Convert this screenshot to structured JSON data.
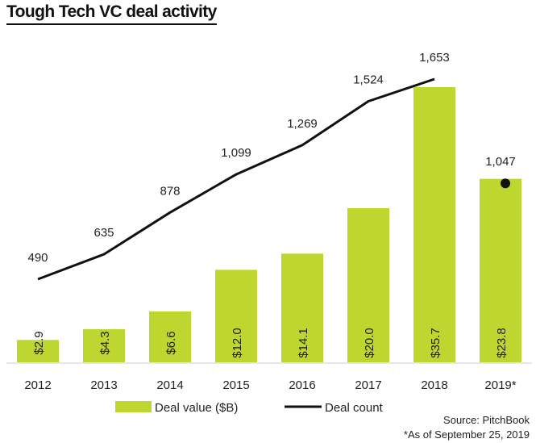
{
  "title": "Tough Tech VC deal activity",
  "source": "Source: PitchBook",
  "footnote": "*As of September 25, 2019",
  "colors": {
    "bar": "#bdd630",
    "line": "#111111",
    "text": "#222222",
    "axis": "#cccccc"
  },
  "chart_data": {
    "type": "bar",
    "categories": [
      "2012",
      "2013",
      "2014",
      "2015",
      "2016",
      "2017",
      "2018",
      "2019*"
    ],
    "series": [
      {
        "name": "Deal value ($B)",
        "type": "bar",
        "values": [
          2.9,
          4.3,
          6.6,
          12.0,
          14.1,
          20.0,
          35.7,
          23.8
        ],
        "labels": [
          "$2.9",
          "$4.3",
          "$6.6",
          "$12.0",
          "$14.1",
          "$20.0",
          "$35.7",
          "$23.8"
        ]
      },
      {
        "name": "Deal count",
        "type": "line",
        "values": [
          490,
          635,
          878,
          1099,
          1269,
          1524,
          1653,
          1047
        ],
        "labels": [
          "490",
          "635",
          "878",
          "1,099",
          "1,269",
          "1,524",
          "1,653",
          "1,047"
        ],
        "line_through": 7,
        "point_marker_index": 7
      }
    ],
    "legend": {
      "position": "bottom"
    },
    "grid": false
  }
}
